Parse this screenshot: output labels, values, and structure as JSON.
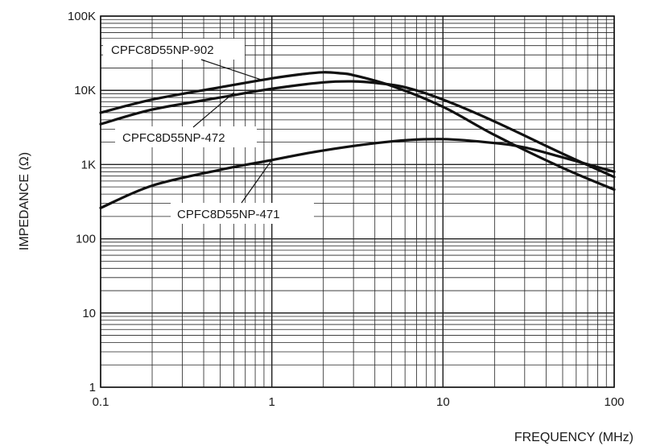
{
  "chart_data": {
    "type": "line",
    "title": "",
    "xlabel": "FREQUENCY (MHz)",
    "ylabel": "IMPEDANCE (Ω)",
    "x_scale": "log",
    "y_scale": "log",
    "xlim": [
      0.1,
      100
    ],
    "ylim": [
      1,
      100000
    ],
    "x_ticks": [
      {
        "value": 0.1,
        "label": "0.1"
      },
      {
        "value": 1,
        "label": "1"
      },
      {
        "value": 10,
        "label": "10"
      },
      {
        "value": 100,
        "label": "100"
      }
    ],
    "y_ticks": [
      {
        "value": 1,
        "label": "1"
      },
      {
        "value": 10,
        "label": "10"
      },
      {
        "value": 100,
        "label": "100"
      },
      {
        "value": 1000,
        "label": "1K"
      },
      {
        "value": 10000,
        "label": "10K"
      },
      {
        "value": 100000,
        "label": "100K"
      }
    ],
    "grid": true,
    "series": [
      {
        "name": "CPFC8D55NP-902",
        "x": [
          0.1,
          0.2,
          0.5,
          1,
          1.5,
          2,
          2.5,
          3,
          5,
          10,
          20,
          50,
          100
        ],
        "y": [
          5000,
          7500,
          11000,
          14500,
          16500,
          17500,
          17000,
          16000,
          11500,
          6000,
          2500,
          900,
          460
        ]
      },
      {
        "name": "CPFC8D55NP-472",
        "x": [
          0.1,
          0.2,
          0.5,
          1,
          2,
          3,
          4,
          6,
          10,
          20,
          50,
          100
        ],
        "y": [
          3500,
          5500,
          8000,
          10500,
          12800,
          13200,
          12600,
          11000,
          7500,
          3800,
          1400,
          680
        ]
      },
      {
        "name": "CPFC8D55NP-471",
        "x": [
          0.1,
          0.2,
          0.5,
          1,
          2,
          5,
          10,
          20,
          30,
          50,
          100
        ],
        "y": [
          260,
          520,
          850,
          1150,
          1550,
          2050,
          2200,
          1950,
          1700,
          1250,
          800
        ]
      }
    ]
  }
}
